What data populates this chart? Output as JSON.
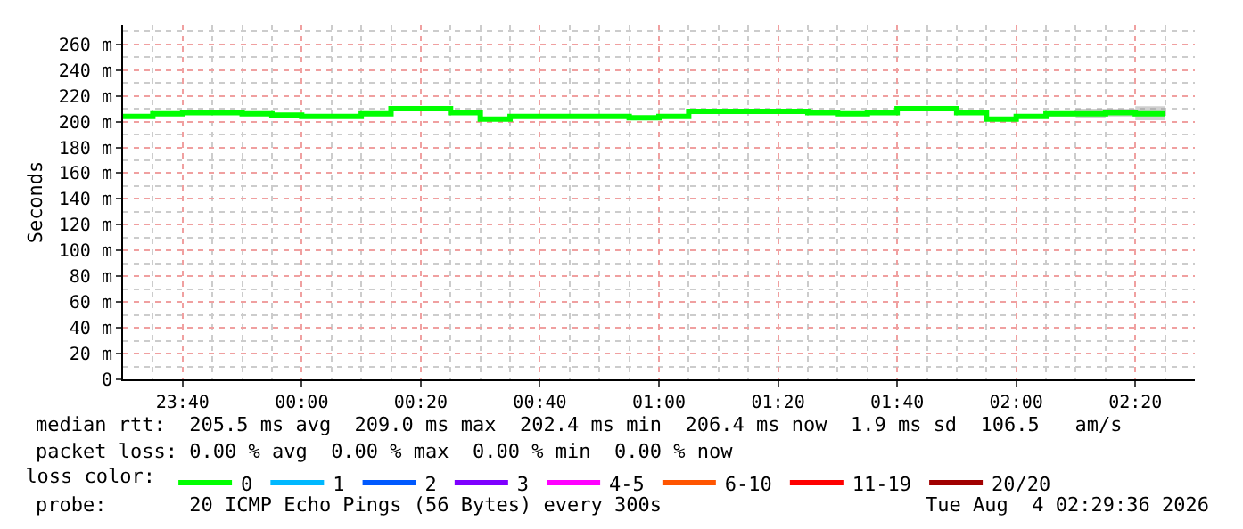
{
  "chart_data": {
    "type": "step",
    "ylabel": "Seconds",
    "legend_title": "loss color:",
    "x": [
      "2026-08-03T23:30",
      "2026-08-03T23:35",
      "2026-08-03T23:40",
      "2026-08-03T23:50",
      "2026-08-03T23:55",
      "2026-08-04T00:00",
      "2026-08-04T00:10",
      "2026-08-04T00:15",
      "2026-08-04T00:25",
      "2026-08-04T00:30",
      "2026-08-04T00:35",
      "2026-08-04T00:50",
      "2026-08-04T00:55",
      "2026-08-04T01:00",
      "2026-08-04T01:05",
      "2026-08-04T01:20",
      "2026-08-04T01:25",
      "2026-08-04T01:30",
      "2026-08-04T01:35",
      "2026-08-04T01:40",
      "2026-08-04T01:50",
      "2026-08-04T01:55",
      "2026-08-04T02:00",
      "2026-08-04T02:05",
      "2026-08-04T02:10",
      "2026-08-04T02:15",
      "2026-08-04T02:20",
      "2026-08-04T02:25"
    ],
    "series": [
      {
        "name": "0",
        "color": "#00ff00",
        "values": [
          204,
          206,
          207,
          206,
          205,
          204,
          206,
          210,
          207,
          202,
          204,
          204,
          203,
          204,
          208,
          208,
          207,
          206,
          207,
          210,
          207,
          202,
          204,
          206,
          206,
          207,
          206,
          206
        ],
        "lower": [
          203,
          205,
          206,
          205,
          204,
          203,
          205,
          209,
          206,
          201,
          203,
          203,
          202,
          203,
          207,
          207,
          206,
          205,
          206,
          209,
          206,
          201,
          203,
          204,
          203,
          204,
          201,
          201
        ],
        "upper": [
          205,
          207,
          208,
          207,
          206,
          205,
          207,
          211,
          208,
          203,
          205,
          205,
          204,
          205,
          209,
          209,
          208,
          207,
          208,
          211,
          208,
          203,
          205,
          208,
          210,
          210,
          212,
          212
        ]
      },
      {
        "name": "1",
        "color": "#00b8ff",
        "values": [
          null,
          null,
          null,
          null,
          null,
          null,
          null,
          null,
          null,
          null,
          null,
          null,
          null,
          null,
          null,
          null,
          null,
          null,
          null,
          null,
          null,
          null,
          null,
          null,
          null,
          null,
          null,
          null
        ]
      },
      {
        "name": "2",
        "color": "#0059ff",
        "values": [
          null,
          null,
          null,
          null,
          null,
          null,
          null,
          null,
          null,
          null,
          null,
          null,
          null,
          null,
          null,
          null,
          null,
          null,
          null,
          null,
          null,
          null,
          null,
          null,
          null,
          null,
          null,
          null
        ]
      },
      {
        "name": "3",
        "color": "#7e00ff",
        "values": [
          null,
          null,
          null,
          null,
          null,
          null,
          null,
          null,
          null,
          null,
          null,
          null,
          null,
          null,
          null,
          null,
          null,
          null,
          null,
          null,
          null,
          null,
          null,
          null,
          null,
          null,
          null,
          null
        ]
      },
      {
        "name": "4-5",
        "color": "#ff00ff",
        "values": [
          null,
          null,
          null,
          null,
          null,
          null,
          null,
          null,
          null,
          null,
          null,
          null,
          null,
          null,
          null,
          null,
          null,
          null,
          null,
          null,
          null,
          null,
          null,
          null,
          null,
          null,
          null,
          null
        ]
      },
      {
        "name": "6-10",
        "color": "#ff5500",
        "values": [
          null,
          null,
          null,
          null,
          null,
          null,
          null,
          null,
          null,
          null,
          null,
          null,
          null,
          null,
          null,
          null,
          null,
          null,
          null,
          null,
          null,
          null,
          null,
          null,
          null,
          null,
          null,
          null
        ]
      },
      {
        "name": "11-19",
        "color": "#ff0000",
        "values": [
          null,
          null,
          null,
          null,
          null,
          null,
          null,
          null,
          null,
          null,
          null,
          null,
          null,
          null,
          null,
          null,
          null,
          null,
          null,
          null,
          null,
          null,
          null,
          null,
          null,
          null,
          null,
          null
        ]
      },
      {
        "name": "20/20",
        "color": "#a10000",
        "values": [
          null,
          null,
          null,
          null,
          null,
          null,
          null,
          null,
          null,
          null,
          null,
          null,
          null,
          null,
          null,
          null,
          null,
          null,
          null,
          null,
          null,
          null,
          null,
          null,
          null,
          null,
          null,
          null
        ]
      }
    ],
    "xlim": [
      "2026-08-03T23:30",
      "2026-08-04T02:30"
    ],
    "xticks": [
      {
        "value": "2026-08-03T23:40",
        "label": "23:40"
      },
      {
        "value": "2026-08-04T00:00",
        "label": "00:00"
      },
      {
        "value": "2026-08-04T00:20",
        "label": "00:20"
      },
      {
        "value": "2026-08-04T00:40",
        "label": "00:40"
      },
      {
        "value": "2026-08-04T01:00",
        "label": "01:00"
      },
      {
        "value": "2026-08-04T01:20",
        "label": "01:20"
      },
      {
        "value": "2026-08-04T01:40",
        "label": "01:40"
      },
      {
        "value": "2026-08-04T02:00",
        "label": "02:00"
      },
      {
        "value": "2026-08-04T02:20",
        "label": "02:20"
      }
    ],
    "ylim": [
      0,
      275
    ],
    "yticks": [
      0,
      {
        "value": 20,
        "label": "20 m"
      },
      {
        "value": 40,
        "label": "40 m"
      },
      {
        "value": 60,
        "label": "60 m"
      },
      {
        "value": 80,
        "label": "80 m"
      },
      {
        "value": 100,
        "label": "100 m"
      },
      {
        "value": 120,
        "label": "120 m"
      },
      {
        "value": 140,
        "label": "140 m"
      },
      {
        "value": 160,
        "label": "160 m"
      },
      {
        "value": 180,
        "label": "180 m"
      },
      {
        "value": 200,
        "label": "200 m"
      },
      {
        "value": 220,
        "label": "220 m"
      },
      {
        "value": 240,
        "label": "240 m"
      },
      {
        "value": 260,
        "label": "260 m"
      }
    ],
    "grid": true,
    "legend": "bottom",
    "marker": "none",
    "line_style": "solid",
    "annotations": [
      "median rtt:  205.5 ms avg  209.0 ms max  202.4 ms min  206.4 ms now  1.9 ms sd  106.5   am/s",
      "packet loss: 0.00 % avg  0.00 % max  0.00 % min  0.00 % now",
      "probe:       20 ICMP Echo Pings (56 Bytes) every 300s",
      "Tue Aug  4 02:29:36 2026"
    ]
  }
}
